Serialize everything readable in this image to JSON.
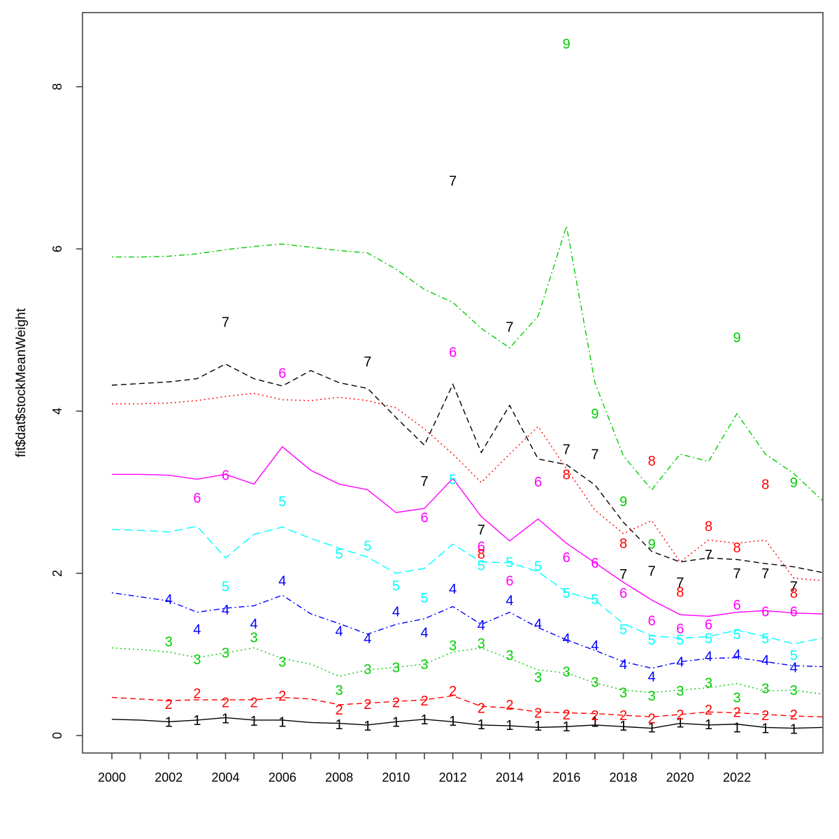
{
  "chart_data": {
    "type": "line",
    "title": "",
    "xlabel": "",
    "ylabel": "fit$dat$stockMeanWeight",
    "background_color": "#ffffff",
    "box_color": "#444444",
    "x_axis": {
      "tick_years": [
        2000,
        2001,
        2002,
        2003,
        2004,
        2005,
        2006,
        2007,
        2008,
        2009,
        2010,
        2011,
        2012,
        2013,
        2014,
        2015,
        2016,
        2017,
        2018,
        2019,
        2020,
        2021,
        2022,
        2023
      ],
      "label_years": [
        2000,
        2002,
        2004,
        2006,
        2008,
        2010,
        2012,
        2014,
        2016,
        2018,
        2020,
        2022
      ],
      "range": [
        1999.0,
        2025.05
      ]
    },
    "y_axis": {
      "ticks": [
        0,
        2,
        4,
        6,
        8
      ],
      "range": [
        -0.22,
        8.91
      ],
      "grid": false
    },
    "legend": "none",
    "line_years": [
      2000,
      2001,
      2002,
      2003,
      2004,
      2005,
      2006,
      2007,
      2008,
      2009,
      2010,
      2011,
      2012,
      2013,
      2014,
      2015,
      2016,
      2017,
      2018,
      2019,
      2020,
      2021,
      2022,
      2023,
      2024,
      2025
    ],
    "series": [
      {
        "label": "1",
        "color": "#000000",
        "dash": "solid",
        "line": [
          0.2,
          0.19,
          0.17,
          0.19,
          0.22,
          0.19,
          0.19,
          0.16,
          0.15,
          0.13,
          0.17,
          0.2,
          0.17,
          0.13,
          0.12,
          0.1,
          0.11,
          0.13,
          0.11,
          0.09,
          0.15,
          0.13,
          0.14,
          0.1,
          0.09,
          0.1
        ],
        "points": [
          [
            2002,
            0.17
          ],
          [
            2003,
            0.19
          ],
          [
            2004,
            0.21
          ],
          [
            2005,
            0.18
          ],
          [
            2006,
            0.17
          ],
          [
            2008,
            0.14
          ],
          [
            2009,
            0.12
          ],
          [
            2010,
            0.17
          ],
          [
            2011,
            0.2
          ],
          [
            2012,
            0.18
          ],
          [
            2013,
            0.14
          ],
          [
            2014,
            0.13
          ],
          [
            2015,
            0.12
          ],
          [
            2016,
            0.11
          ],
          [
            2017,
            0.17
          ],
          [
            2018,
            0.12
          ],
          [
            2019,
            0.1
          ],
          [
            2020,
            0.16
          ],
          [
            2021,
            0.14
          ],
          [
            2022,
            0.1
          ],
          [
            2023,
            0.09
          ],
          [
            2024,
            0.08
          ]
        ]
      },
      {
        "label": "2",
        "color": "#FF0000",
        "dash": "dashed",
        "line": [
          0.47,
          0.45,
          0.43,
          0.44,
          0.44,
          0.44,
          0.47,
          0.45,
          0.38,
          0.4,
          0.42,
          0.44,
          0.49,
          0.36,
          0.34,
          0.29,
          0.28,
          0.27,
          0.25,
          0.23,
          0.26,
          0.29,
          0.28,
          0.26,
          0.24,
          0.23
        ],
        "points": [
          [
            2002,
            0.39
          ],
          [
            2003,
            0.52
          ],
          [
            2004,
            0.41
          ],
          [
            2005,
            0.41
          ],
          [
            2006,
            0.49
          ],
          [
            2008,
            0.32
          ],
          [
            2009,
            0.39
          ],
          [
            2010,
            0.41
          ],
          [
            2011,
            0.43
          ],
          [
            2012,
            0.55
          ],
          [
            2013,
            0.34
          ],
          [
            2014,
            0.38
          ],
          [
            2015,
            0.28
          ],
          [
            2016,
            0.26
          ],
          [
            2017,
            0.25
          ],
          [
            2018,
            0.25
          ],
          [
            2019,
            0.21
          ],
          [
            2020,
            0.26
          ],
          [
            2021,
            0.32
          ],
          [
            2022,
            0.29
          ],
          [
            2023,
            0.25
          ],
          [
            2024,
            0.26
          ]
        ]
      },
      {
        "label": "3",
        "color": "#00CD00",
        "dash": "dotted",
        "line": [
          1.08,
          1.06,
          1.03,
          0.96,
          1.02,
          1.08,
          0.95,
          0.88,
          0.73,
          0.81,
          0.84,
          0.88,
          1.03,
          1.08,
          0.95,
          0.81,
          0.77,
          0.65,
          0.56,
          0.53,
          0.56,
          0.59,
          0.64,
          0.55,
          0.56,
          0.51
        ],
        "points": [
          [
            2002,
            1.16
          ],
          [
            2003,
            0.94
          ],
          [
            2004,
            1.02
          ],
          [
            2005,
            1.21
          ],
          [
            2006,
            0.91
          ],
          [
            2008,
            0.56
          ],
          [
            2009,
            0.82
          ],
          [
            2010,
            0.84
          ],
          [
            2011,
            0.88
          ],
          [
            2012,
            1.11
          ],
          [
            2013,
            1.14
          ],
          [
            2014,
            0.99
          ],
          [
            2015,
            0.72
          ],
          [
            2016,
            0.79
          ],
          [
            2017,
            0.66
          ],
          [
            2018,
            0.53
          ],
          [
            2019,
            0.49
          ],
          [
            2020,
            0.55
          ],
          [
            2021,
            0.65
          ],
          [
            2022,
            0.47
          ],
          [
            2023,
            0.58
          ],
          [
            2024,
            0.56
          ]
        ]
      },
      {
        "label": "4",
        "color": "#0000FF",
        "dash": "dotdash",
        "line": [
          1.76,
          1.71,
          1.66,
          1.52,
          1.57,
          1.6,
          1.73,
          1.5,
          1.38,
          1.25,
          1.37,
          1.44,
          1.59,
          1.37,
          1.52,
          1.33,
          1.18,
          1.05,
          0.91,
          0.83,
          0.91,
          0.95,
          0.96,
          0.91,
          0.86,
          0.85
        ],
        "points": [
          [
            2002,
            1.68
          ],
          [
            2003,
            1.31
          ],
          [
            2004,
            1.55
          ],
          [
            2005,
            1.38
          ],
          [
            2006,
            1.91
          ],
          [
            2008,
            1.29
          ],
          [
            2009,
            1.2
          ],
          [
            2010,
            1.53
          ],
          [
            2011,
            1.27
          ],
          [
            2012,
            1.81
          ],
          [
            2013,
            1.36
          ],
          [
            2014,
            1.67
          ],
          [
            2015,
            1.38
          ],
          [
            2016,
            1.2
          ],
          [
            2017,
            1.11
          ],
          [
            2018,
            0.88
          ],
          [
            2019,
            0.73
          ],
          [
            2020,
            0.91
          ],
          [
            2021,
            0.98
          ],
          [
            2022,
            1.0
          ],
          [
            2023,
            0.93
          ],
          [
            2024,
            0.84
          ]
        ]
      },
      {
        "label": "5",
        "color": "#00FFFF",
        "dash": "longdash",
        "line": [
          2.54,
          2.53,
          2.51,
          2.58,
          2.19,
          2.48,
          2.57,
          2.43,
          2.31,
          2.2,
          2.0,
          2.06,
          2.36,
          2.14,
          2.13,
          2.02,
          1.77,
          1.67,
          1.38,
          1.23,
          1.2,
          1.22,
          1.3,
          1.22,
          1.13,
          1.2
        ],
        "points": [
          [
            2004,
            1.84
          ],
          [
            2006,
            2.89
          ],
          [
            2008,
            2.24
          ],
          [
            2009,
            2.34
          ],
          [
            2010,
            1.85
          ],
          [
            2011,
            1.7
          ],
          [
            2012,
            3.16
          ],
          [
            2013,
            2.1
          ],
          [
            2014,
            2.14
          ],
          [
            2015,
            2.09
          ],
          [
            2016,
            1.76
          ],
          [
            2017,
            1.68
          ],
          [
            2018,
            1.31
          ],
          [
            2019,
            1.18
          ],
          [
            2020,
            1.18
          ],
          [
            2021,
            1.2
          ],
          [
            2022,
            1.25
          ],
          [
            2023,
            1.2
          ],
          [
            2024,
            0.99
          ]
        ]
      },
      {
        "label": "6",
        "color": "#FF00FF",
        "dash": "solid",
        "line": [
          3.22,
          3.22,
          3.21,
          3.16,
          3.22,
          3.1,
          3.56,
          3.27,
          3.1,
          3.03,
          2.75,
          2.8,
          3.17,
          2.7,
          2.4,
          2.67,
          2.37,
          2.13,
          1.89,
          1.67,
          1.49,
          1.47,
          1.52,
          1.54,
          1.51,
          1.5
        ],
        "points": [
          [
            2003,
            2.93
          ],
          [
            2004,
            3.21
          ],
          [
            2006,
            4.47
          ],
          [
            2011,
            2.69
          ],
          [
            2012,
            4.73
          ],
          [
            2013,
            2.33
          ],
          [
            2014,
            1.91
          ],
          [
            2015,
            3.13
          ],
          [
            2016,
            2.2
          ],
          [
            2017,
            2.13
          ],
          [
            2018,
            1.76
          ],
          [
            2019,
            1.42
          ],
          [
            2020,
            1.32
          ],
          [
            2021,
            1.37
          ],
          [
            2022,
            1.61
          ],
          [
            2023,
            1.53
          ],
          [
            2024,
            1.53
          ]
        ]
      },
      {
        "label": "7",
        "color": "#000000",
        "dash": "dashed",
        "line": [
          4.32,
          4.34,
          4.36,
          4.4,
          4.58,
          4.4,
          4.31,
          4.5,
          4.35,
          4.28,
          3.92,
          3.58,
          4.33,
          3.49,
          4.07,
          3.41,
          3.34,
          3.09,
          2.63,
          2.27,
          2.14,
          2.19,
          2.17,
          2.12,
          2.08,
          2.01
        ],
        "points": [
          [
            2004,
            5.1
          ],
          [
            2009,
            4.61
          ],
          [
            2011,
            3.14
          ],
          [
            2012,
            6.84
          ],
          [
            2013,
            2.54
          ],
          [
            2014,
            5.04
          ],
          [
            2016,
            3.53
          ],
          [
            2017,
            3.47
          ],
          [
            2018,
            1.99
          ],
          [
            2019,
            2.03
          ],
          [
            2020,
            1.89
          ],
          [
            2021,
            2.23
          ],
          [
            2022,
            2.0
          ],
          [
            2023,
            2.0
          ],
          [
            2024,
            1.84
          ]
        ]
      },
      {
        "label": "8",
        "color": "#FF0000",
        "dash": "dotted",
        "line": [
          4.09,
          4.09,
          4.1,
          4.13,
          4.18,
          4.22,
          4.14,
          4.13,
          4.17,
          4.13,
          4.04,
          3.78,
          3.47,
          3.12,
          3.47,
          3.81,
          3.29,
          2.78,
          2.49,
          2.65,
          2.14,
          2.41,
          2.37,
          2.41,
          1.94,
          1.91
        ],
        "points": [
          [
            2013,
            2.24
          ],
          [
            2016,
            3.22
          ],
          [
            2018,
            2.37
          ],
          [
            2019,
            3.39
          ],
          [
            2020,
            1.77
          ],
          [
            2021,
            2.58
          ],
          [
            2022,
            2.32
          ],
          [
            2023,
            3.1
          ],
          [
            2024,
            1.76
          ]
        ]
      },
      {
        "label": "9",
        "color": "#00CD00",
        "dash": "dotdash",
        "line": [
          5.9,
          5.9,
          5.91,
          5.94,
          5.99,
          6.03,
          6.06,
          6.02,
          5.98,
          5.95,
          5.75,
          5.5,
          5.34,
          5.02,
          4.78,
          5.17,
          6.28,
          4.35,
          3.45,
          3.03,
          3.47,
          3.38,
          3.97,
          3.47,
          3.23,
          2.9
        ],
        "points": [
          [
            2016,
            8.53
          ],
          [
            2017,
            3.97
          ],
          [
            2018,
            2.89
          ],
          [
            2019,
            2.36
          ],
          [
            2022,
            4.91
          ],
          [
            2024,
            3.12
          ]
        ]
      }
    ]
  }
}
